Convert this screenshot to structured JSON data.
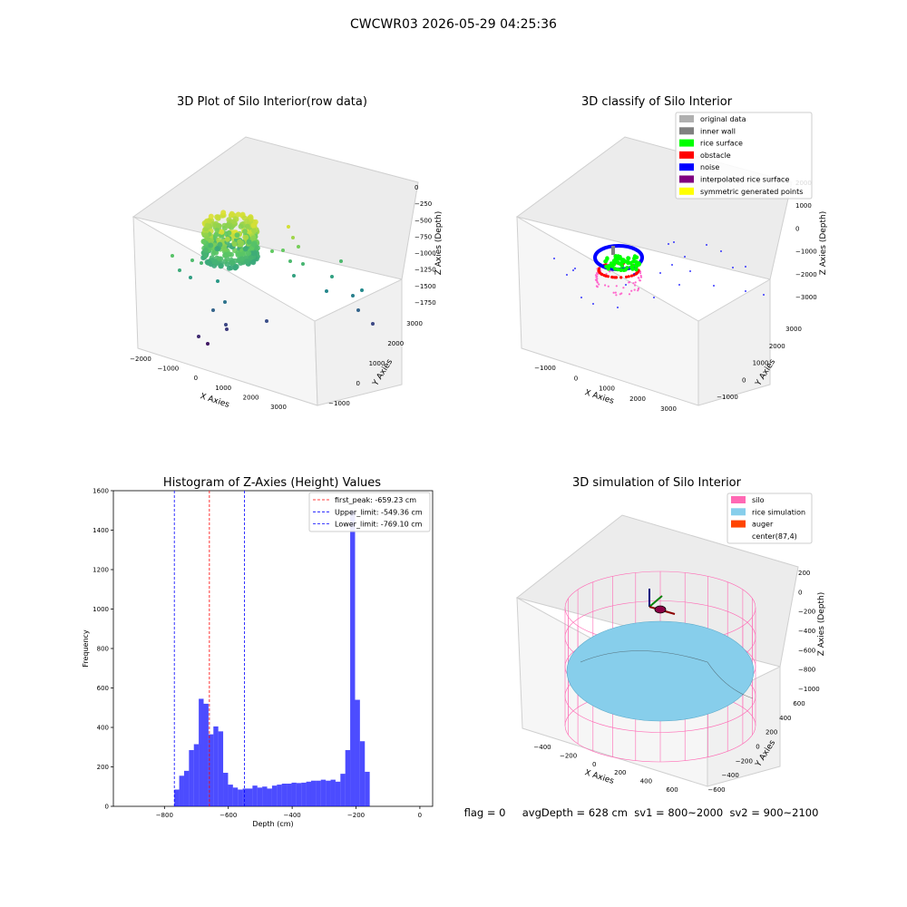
{
  "suptitle": "CWCWR03 2026-05-29 04:25:36",
  "status_line": "flag = 0     avgDepth = 628 cm  sv1 = 800~2000  sv2 = 900~2100",
  "chart_data": [
    {
      "type": "scatter",
      "projection": "3d",
      "title": "3D Plot of Silo Interior(row data)",
      "xlabel": "X Axies",
      "ylabel": "Y Axies",
      "zlabel": "Z Axies (Depth)",
      "x_ticks": [
        "−2000",
        "−1000",
        "0",
        "1000",
        "2000",
        "3000"
      ],
      "y_ticks": [
        "−1000",
        "0",
        "1000",
        "2000",
        "3000"
      ],
      "z_ticks": [
        "0",
        "−250",
        "−500",
        "−750",
        "−1000",
        "−1250",
        "−1500",
        "−1750"
      ],
      "colormap": "viridis",
      "grid": true
    },
    {
      "type": "scatter",
      "projection": "3d",
      "title": "3D classify of Silo Interior",
      "xlabel": "X Axies",
      "ylabel": "Y Axies",
      "zlabel": "Z Axies (Depth)",
      "x_ticks": [
        "−1000",
        "0",
        "1000",
        "2000",
        "3000"
      ],
      "y_ticks": [
        "−1000",
        "0",
        "1000",
        "2000",
        "3000"
      ],
      "z_ticks": [
        "2000",
        "1000",
        "0",
        "−1000",
        "−2000",
        "−3000"
      ],
      "legend_position": "top-right",
      "legend": [
        {
          "label": "original data",
          "color": "#b0b0b0"
        },
        {
          "label": "inner wall",
          "color": "#808080"
        },
        {
          "label": "rice surface",
          "color": "#00ff00"
        },
        {
          "label": "obstacle",
          "color": "#ff0000"
        },
        {
          "label": "noise",
          "color": "#0000ff"
        },
        {
          "label": "interpolated rice surface",
          "color": "#800080"
        },
        {
          "label": "symmetric generated points",
          "color": "#ffff00"
        }
      ],
      "grid": true
    },
    {
      "type": "bar",
      "title": "Histogram of Z-Axies (Height) Values",
      "xlabel": "Depth (cm)",
      "ylabel": "Frequency",
      "xlim": [
        -960,
        40
      ],
      "ylim": [
        0,
        1600
      ],
      "x_ticks": [
        -800,
        -600,
        -400,
        -200,
        0
      ],
      "x_tick_labels": [
        "−800",
        "−600",
        "−400",
        "−200",
        "0"
      ],
      "y_ticks": [
        0,
        200,
        400,
        600,
        800,
        1000,
        1200,
        1400,
        1600
      ],
      "bar_color": "#0000ff",
      "bin_start": -769.1,
      "bin_width": 15.3,
      "counts": [
        85,
        155,
        180,
        285,
        315,
        545,
        520,
        365,
        405,
        380,
        170,
        110,
        95,
        85,
        90,
        90,
        105,
        95,
        100,
        90,
        105,
        110,
        115,
        115,
        120,
        118,
        120,
        125,
        130,
        130,
        135,
        130,
        135,
        125,
        165,
        285,
        1500,
        540,
        330,
        175
      ],
      "vlines": [
        {
          "label": "first_peak: -659.23 cm",
          "x": -659.23,
          "color": "#ff0000",
          "style": "dashed"
        },
        {
          "label": "Upper_limit: -549.36 cm",
          "x": -549.36,
          "color": "#0000ff",
          "style": "dashed"
        },
        {
          "label": "Lower_limit: -769.10 cm",
          "x": -769.1,
          "color": "#0000ff",
          "style": "dashed"
        }
      ],
      "legend_position": "top-right",
      "grid": false
    },
    {
      "type": "surface",
      "projection": "3d",
      "title": "3D simulation of Silo Interior",
      "xlabel": "X Axies",
      "ylabel": "Y Axies",
      "zlabel": "Z Axies (Depth)",
      "x_ticks": [
        "−400",
        "−200",
        "0",
        "200",
        "400",
        "600"
      ],
      "y_ticks": [
        "−600",
        "−400",
        "−200",
        "0",
        "200",
        "400",
        "600"
      ],
      "z_ticks": [
        "200",
        "0",
        "−200",
        "−400",
        "−600",
        "−800",
        "−1000"
      ],
      "legend_position": "top-right",
      "legend": [
        {
          "label": "silo",
          "color": "#ff69b4"
        },
        {
          "label": "rice simulation",
          "color": "#87ceeb"
        },
        {
          "label": "auger",
          "color": "#ff4500"
        },
        {
          "label": "center(87,4)",
          "color": "#ffffff"
        }
      ],
      "grid": true
    }
  ]
}
